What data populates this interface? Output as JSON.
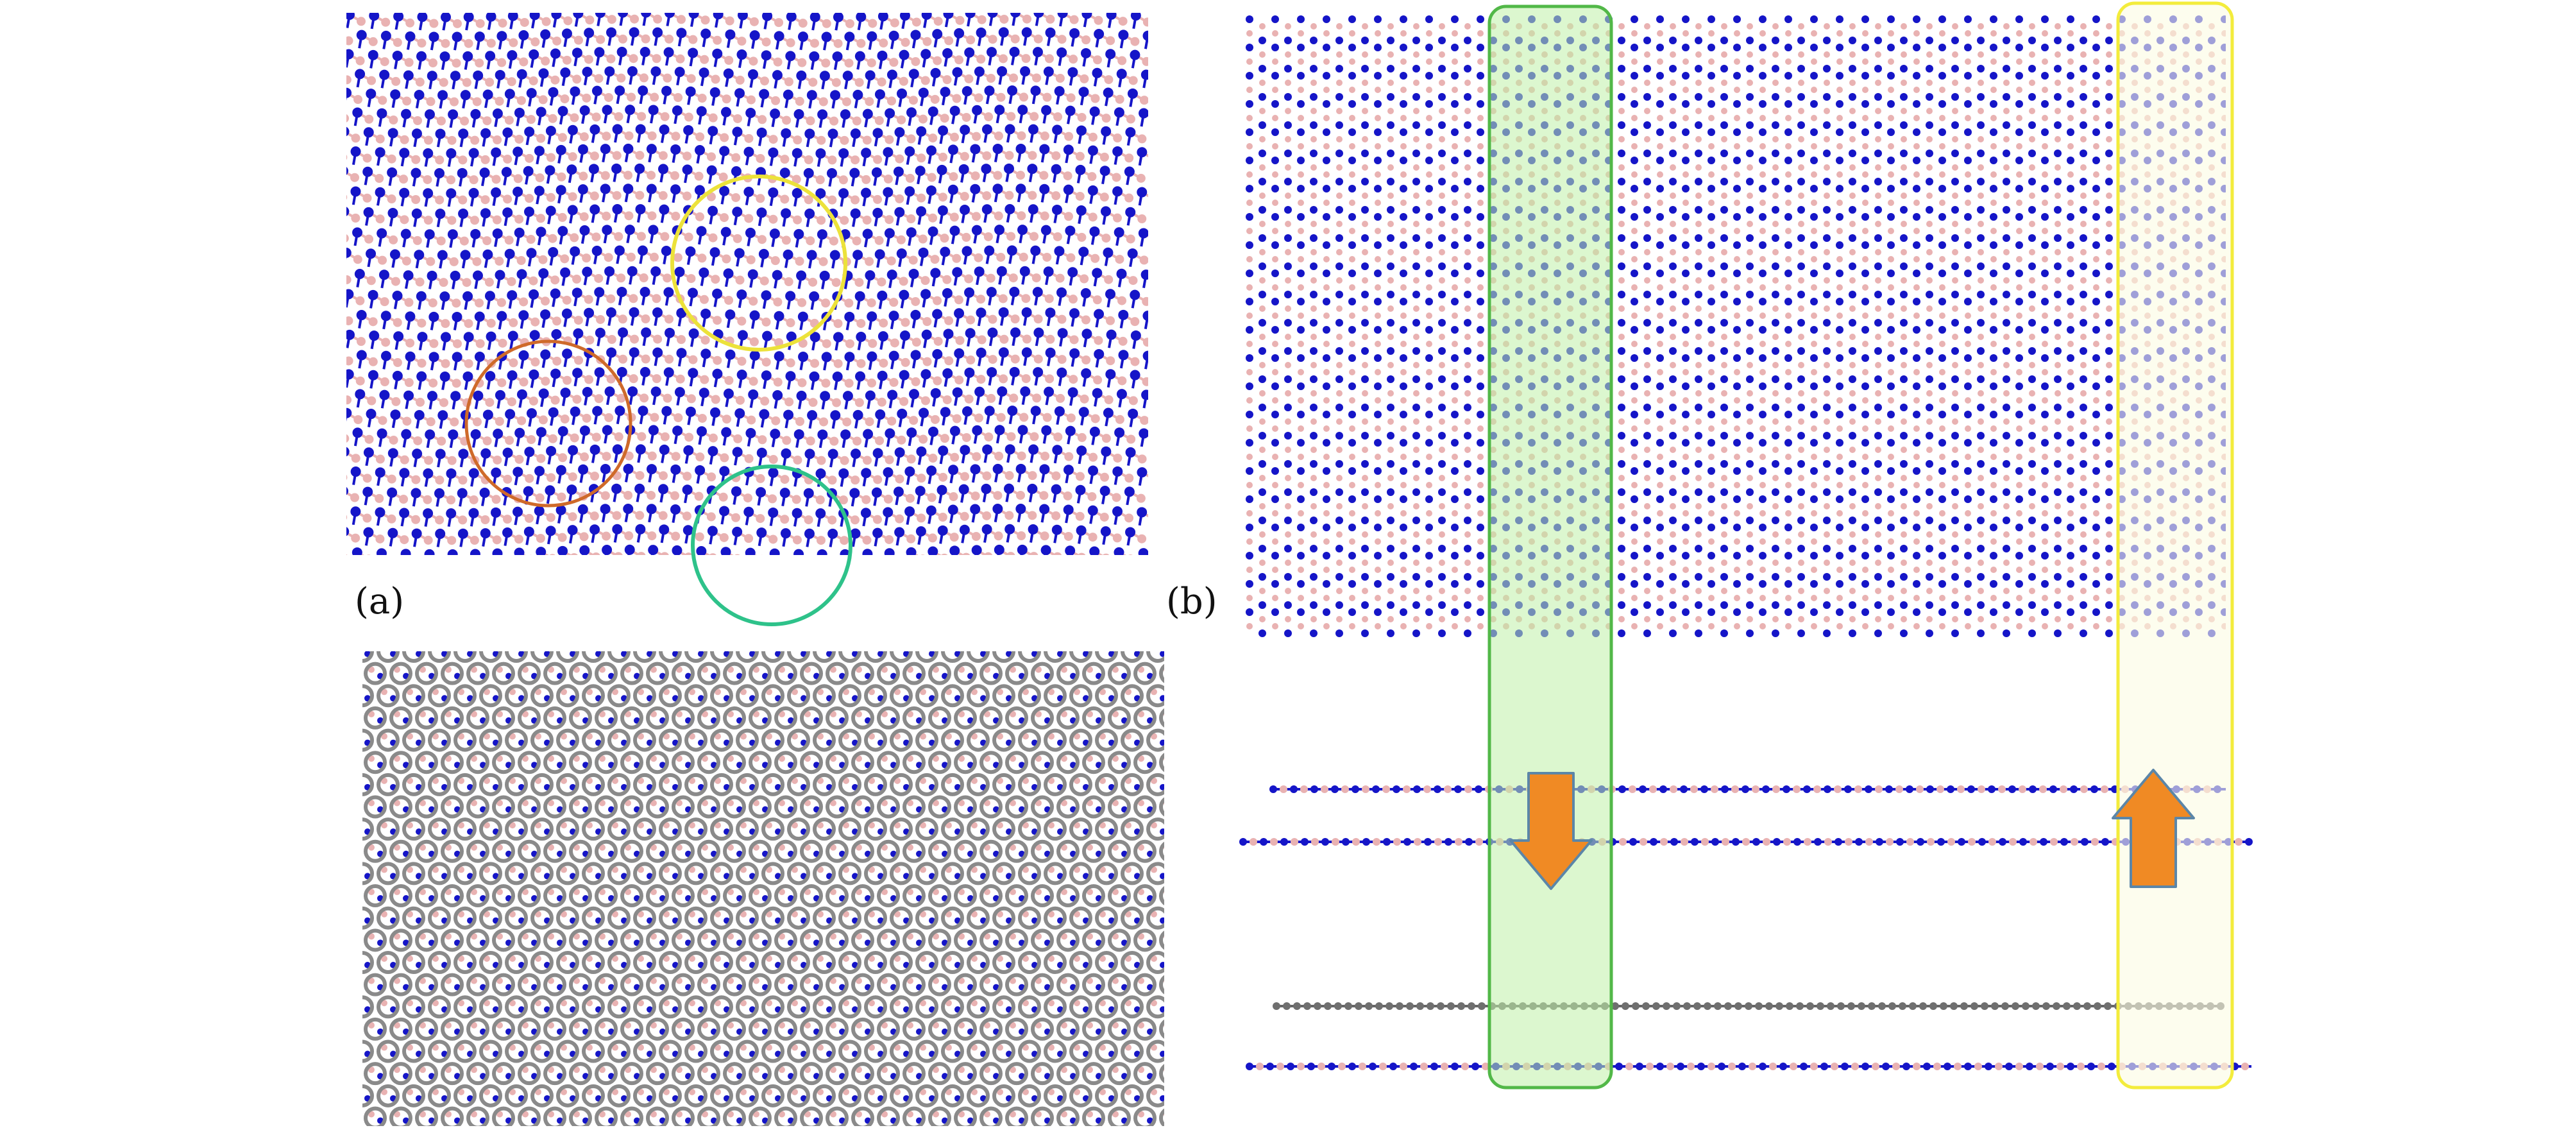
{
  "figure": {
    "panel_a_label": "(a)",
    "panel_b_label": "(b)"
  },
  "colors": {
    "nitrogen": "#1515c8",
    "boron": "#e9b2b2",
    "carbon": "#8a8a8a",
    "highlight_green_fill": "#bff0a8",
    "highlight_green_stroke": "#52b848",
    "highlight_yellow_fill": "#fbfbe2",
    "highlight_yellow_stroke": "#f3ec3c",
    "circle_yellow": "#ece23a",
    "circle_orange": "#cf6a2a",
    "circle_green": "#2ec28a",
    "arrow_fill": "#f08a24",
    "arrow_stroke": "#5b86a8"
  },
  "annotations": {
    "circles": [
      "circle_yellow",
      "circle_orange",
      "circle_green"
    ],
    "arrows": [
      {
        "name": "down-arrow",
        "direction": "down"
      },
      {
        "name": "up-arrow",
        "direction": "up"
      }
    ]
  }
}
